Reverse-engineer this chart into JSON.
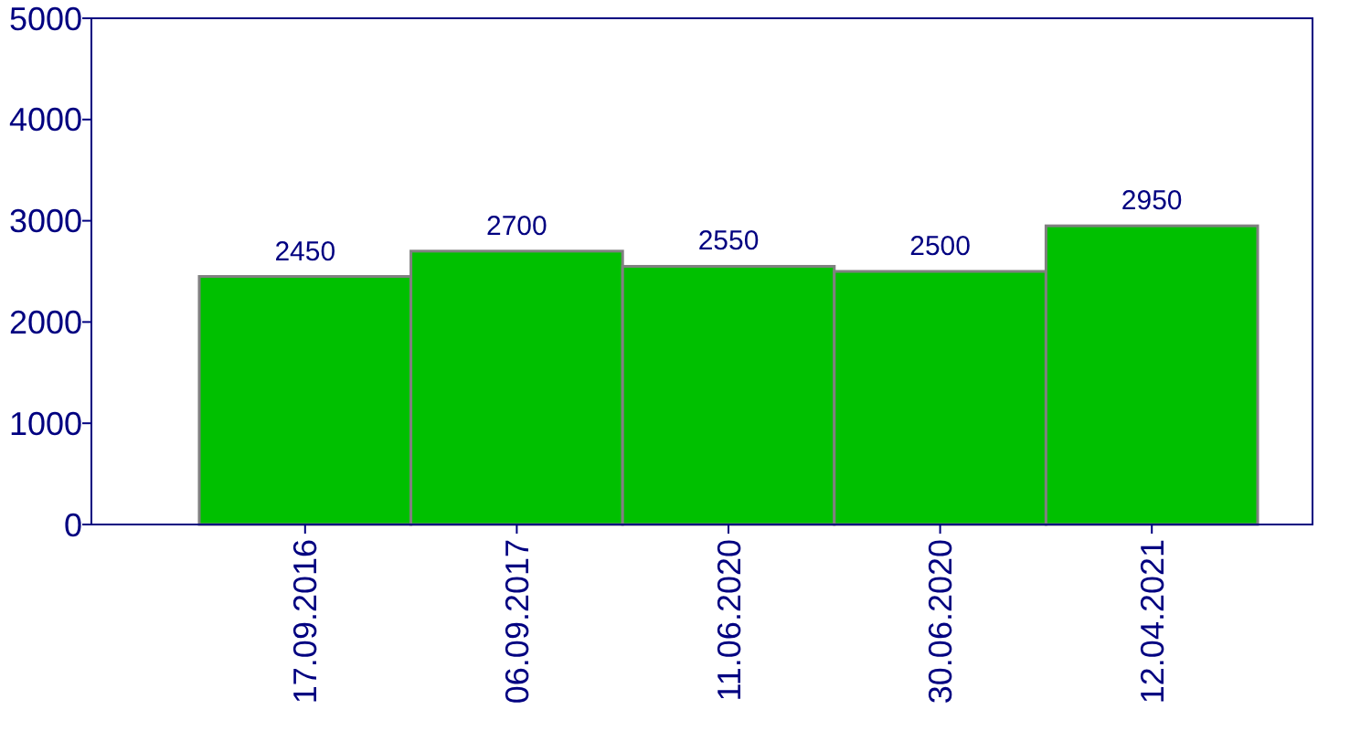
{
  "chart_data": {
    "type": "bar",
    "categories": [
      "17.09.2016",
      "06.09.2017",
      "11.06.2020",
      "30.06.2020",
      "12.04.2021"
    ],
    "values": [
      2450,
      2700,
      2550,
      2500,
      2950
    ],
    "color": "#00c000",
    "ylim": [
      0,
      5000
    ],
    "yticks": [
      0,
      1000,
      2000,
      3000,
      4000,
      5000
    ],
    "data_labels": true
  }
}
